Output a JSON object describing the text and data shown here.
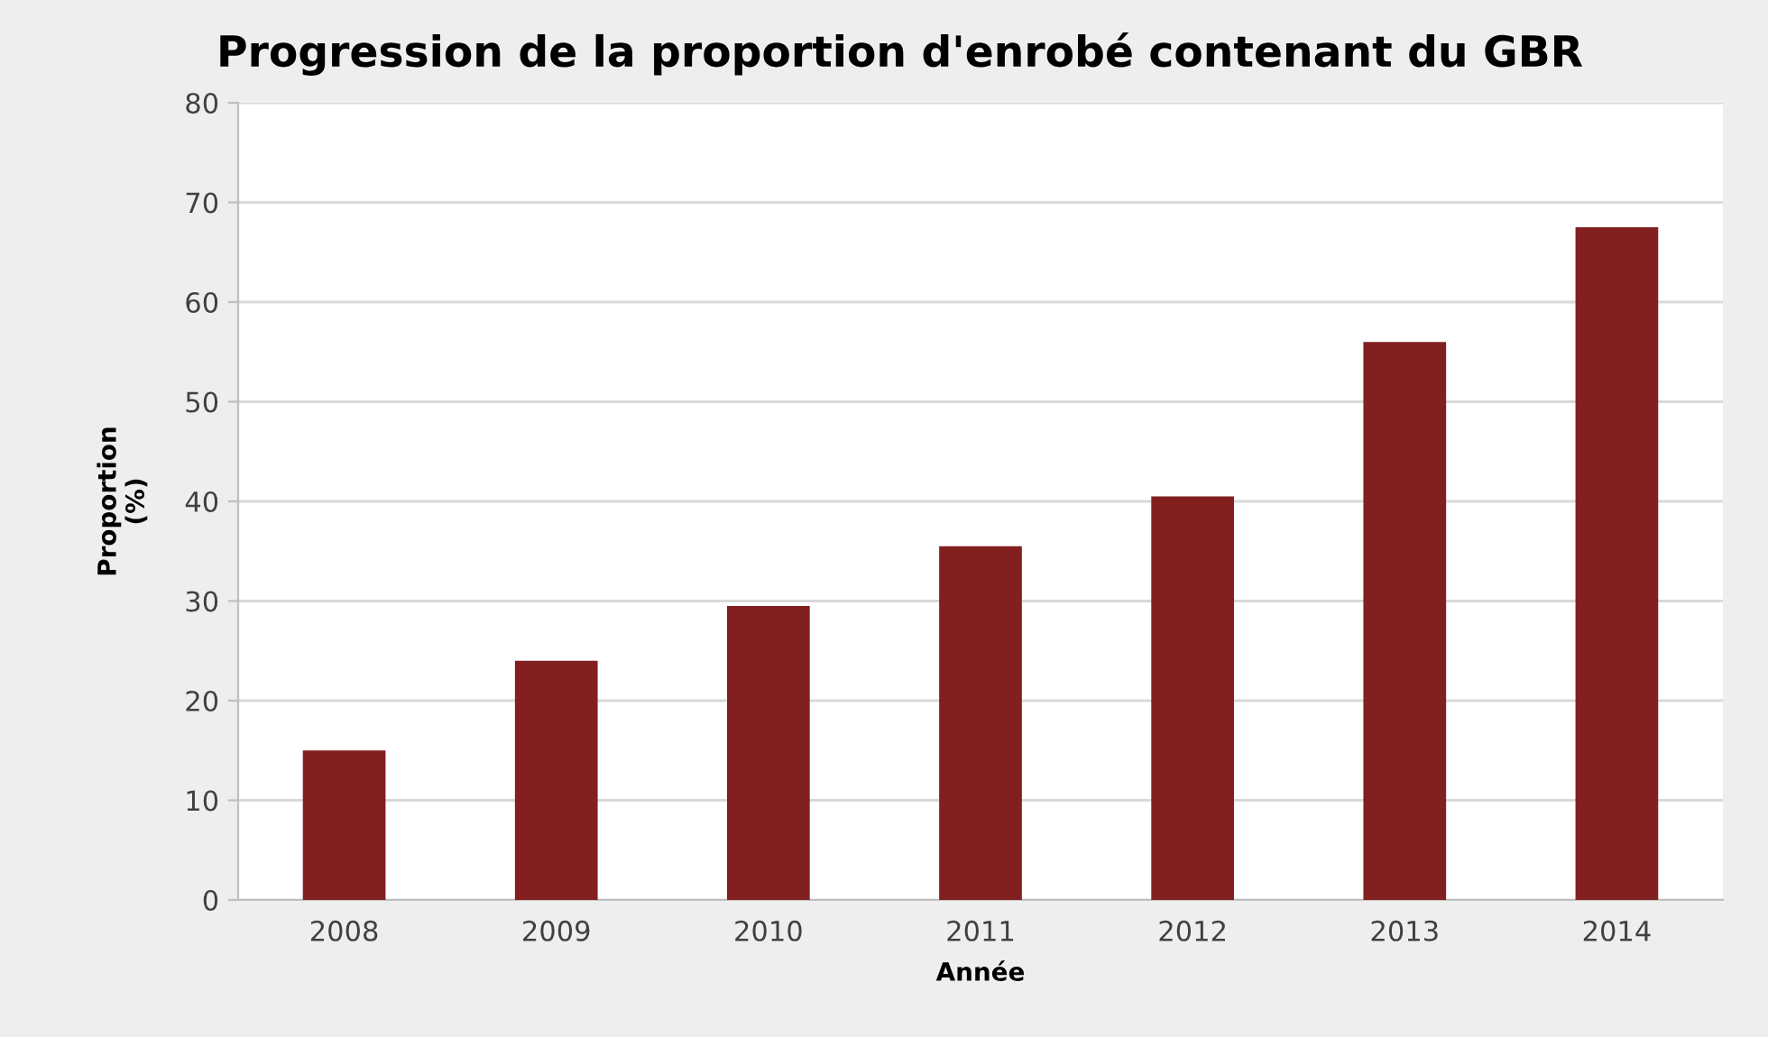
{
  "chart_data": {
    "type": "bar",
    "title": "Progression de la proportion d'enrobé contenant du GBR",
    "xlabel": "Année",
    "ylabel": "Proportion\n(%)",
    "categories": [
      "2008",
      "2009",
      "2010",
      "2011",
      "2012",
      "2013",
      "2014"
    ],
    "values": [
      15,
      24,
      29.5,
      35.5,
      40.5,
      56,
      67.5
    ],
    "color": "#822020",
    "ylim": [
      0,
      80
    ],
    "yticks": [
      0,
      10,
      20,
      30,
      40,
      50,
      60,
      70,
      80
    ],
    "grid": "y",
    "legend": false
  }
}
